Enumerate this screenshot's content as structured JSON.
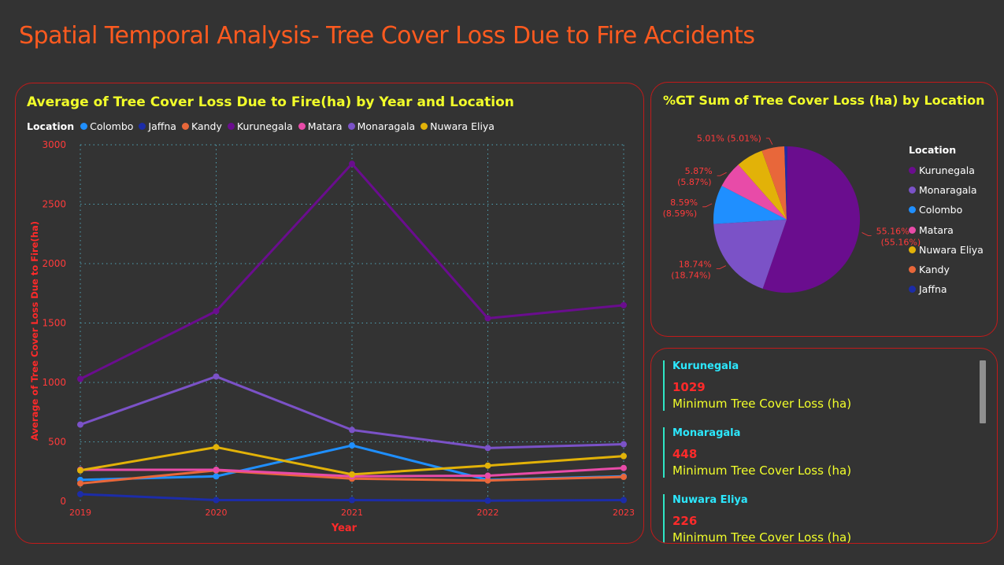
{
  "page": {
    "title": "Spatial Temporal Analysis- Tree Cover Loss Due to Fire Accidents"
  },
  "colors": {
    "Colombo": "#1f8fff",
    "Jaffna": "#1c2ca8",
    "Kandy": "#e8673a",
    "Kurunegala": "#6a0d8e",
    "Matara": "#e84ba8",
    "Monaragala": "#7b52c7",
    "Nuwara Eliya": "#e2b208"
  },
  "chart_data": [
    {
      "type": "line",
      "title": "Average of Tree Cover Loss Due to Fire(ha) by Year and Location",
      "xlabel": "Year",
      "ylabel": "Average of Tree Cover Loss Due to Fire(ha)",
      "legend_title": "Location",
      "legend_position": "top-left",
      "grid": true,
      "ylim": [
        0,
        3000
      ],
      "yticks": [
        "0",
        "500",
        "1000",
        "1500",
        "2000",
        "2500",
        "3000"
      ],
      "x": [
        "2019",
        "2020",
        "2021",
        "2022",
        "2023"
      ],
      "series": [
        {
          "name": "Colombo",
          "values": [
            180,
            210,
            470,
            180,
            210
          ]
        },
        {
          "name": "Jaffna",
          "values": [
            60,
            10,
            10,
            5,
            10
          ]
        },
        {
          "name": "Kandy",
          "values": [
            150,
            260,
            190,
            175,
            205
          ]
        },
        {
          "name": "Kurunegala",
          "values": [
            1029,
            1600,
            2840,
            1540,
            1650
          ]
        },
        {
          "name": "Matara",
          "values": [
            265,
            265,
            210,
            215,
            280
          ]
        },
        {
          "name": "Monaragala",
          "values": [
            645,
            1050,
            600,
            448,
            480
          ]
        },
        {
          "name": "Nuwara Eliya",
          "values": [
            260,
            455,
            226,
            300,
            380
          ]
        }
      ]
    },
    {
      "type": "pie",
      "title": "%GT Sum of Tree Cover Loss (ha) by Location",
      "legend_title": "Location",
      "legend_position": "right",
      "slices": [
        {
          "name": "Kurunegala",
          "value": 55.16,
          "label": "55.16%",
          "label2": "(55.16%)"
        },
        {
          "name": "Monaragala",
          "value": 18.74,
          "label": "18.74%",
          "label2": "(18.74%)"
        },
        {
          "name": "Colombo",
          "value": 8.59,
          "label": "8.59%",
          "label2": "(8.59%)"
        },
        {
          "name": "Matara",
          "value": 5.87,
          "label": "5.87%",
          "label2": "(5.87%)"
        },
        {
          "name": "Nuwara Eliya",
          "value": 6.0,
          "label": "",
          "label2": ""
        },
        {
          "name": "Kandy",
          "value": 5.01,
          "label": "5.01% (5.01%)",
          "label2": ""
        },
        {
          "name": "Jaffna",
          "value": 0.63,
          "label": "",
          "label2": ""
        }
      ]
    }
  ],
  "cards": [
    {
      "name": "Kurunegala",
      "value": "1029",
      "label": "Minimum Tree Cover Loss (ha)"
    },
    {
      "name": "Monaragala",
      "value": "448",
      "label": "Minimum Tree Cover Loss (ha)"
    },
    {
      "name": "Nuwara Eliya",
      "value": "226",
      "label": "Minimum Tree Cover Loss (ha)"
    }
  ]
}
